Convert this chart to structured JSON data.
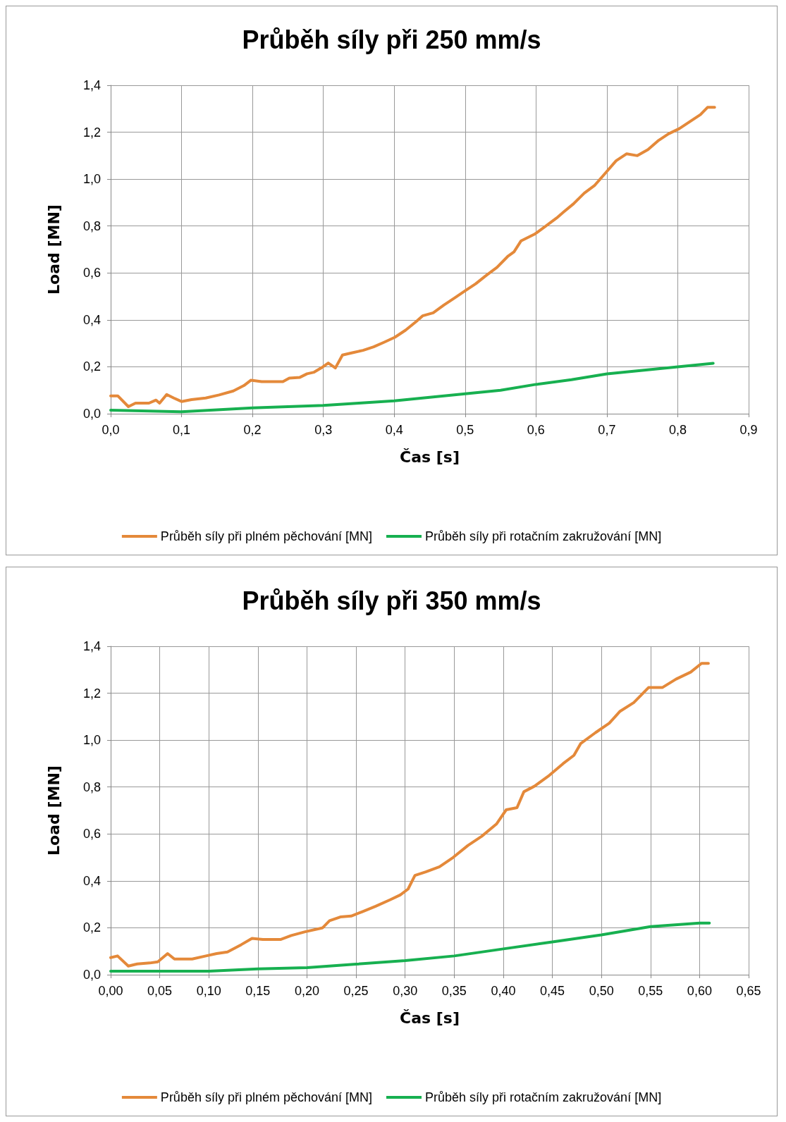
{
  "chart_data": [
    {
      "type": "line",
      "title": "Průběh síly při 250 mm/s",
      "xlabel": "Čas [s]",
      "ylabel": "Load [MN]",
      "grid": true,
      "legend": "bottom",
      "marker": "none",
      "line_style": "solid",
      "xlim": [
        0,
        0.9
      ],
      "xticks": [
        {
          "value": 0,
          "label": "0,0"
        },
        {
          "value": 0.1,
          "label": "0,1"
        },
        {
          "value": 0.2,
          "label": "0,2"
        },
        {
          "value": 0.3,
          "label": "0,3"
        },
        {
          "value": 0.4,
          "label": "0,4"
        },
        {
          "value": 0.5,
          "label": "0,5"
        },
        {
          "value": 0.6,
          "label": "0,6"
        },
        {
          "value": 0.7,
          "label": "0,7"
        },
        {
          "value": 0.8,
          "label": "0,8"
        },
        {
          "value": 0.9,
          "label": "0,9"
        }
      ],
      "ylim": [
        0,
        1.4
      ],
      "yticks": [
        {
          "value": 0,
          "label": "0,0"
        },
        {
          "value": 0.2,
          "label": "0,2"
        },
        {
          "value": 0.4,
          "label": "0,4"
        },
        {
          "value": 0.6,
          "label": "0,6"
        },
        {
          "value": 0.8,
          "label": "0,8"
        },
        {
          "value": 1.0,
          "label": "1,0"
        },
        {
          "value": 1.2,
          "label": "1,2"
        },
        {
          "value": 1.4,
          "label": "1,4"
        }
      ],
      "series": [
        {
          "name": "Průběh síly při plném pěchování [MN]",
          "color": "#e4893a",
          "x": [
            0,
            0.01,
            0.025,
            0.035,
            0.054,
            0.064,
            0.069,
            0.079,
            0.089,
            0.1,
            0.114,
            0.134,
            0.153,
            0.173,
            0.188,
            0.198,
            0.213,
            0.243,
            0.252,
            0.267,
            0.277,
            0.287,
            0.297,
            0.307,
            0.317,
            0.327,
            0.341,
            0.356,
            0.371,
            0.386,
            0.401,
            0.416,
            0.431,
            0.44,
            0.455,
            0.47,
            0.485,
            0.5,
            0.515,
            0.53,
            0.545,
            0.56,
            0.569,
            0.579,
            0.599,
            0.614,
            0.629,
            0.639,
            0.653,
            0.668,
            0.683,
            0.698,
            0.713,
            0.728,
            0.743,
            0.758,
            0.772,
            0.787,
            0.802,
            0.817,
            0.832,
            0.842,
            0.852
          ],
          "values": [
            0.076,
            0.076,
            0.03,
            0.045,
            0.045,
            0.058,
            0.045,
            0.082,
            0.067,
            0.052,
            0.06,
            0.067,
            0.08,
            0.097,
            0.12,
            0.143,
            0.137,
            0.137,
            0.152,
            0.155,
            0.17,
            0.177,
            0.195,
            0.216,
            0.195,
            0.25,
            0.26,
            0.27,
            0.285,
            0.305,
            0.326,
            0.356,
            0.393,
            0.417,
            0.43,
            0.463,
            0.493,
            0.524,
            0.554,
            0.59,
            0.624,
            0.67,
            0.69,
            0.737,
            0.767,
            0.8,
            0.834,
            0.86,
            0.895,
            0.94,
            0.974,
            1.026,
            1.078,
            1.108,
            1.1,
            1.126,
            1.163,
            1.193,
            1.215,
            1.245,
            1.275,
            1.306,
            1.306
          ]
        },
        {
          "name": "Průběh síly při rotačním zakružování [MN]",
          "color": "#17b050",
          "x": [
            0,
            0.1,
            0.2,
            0.3,
            0.35,
            0.4,
            0.45,
            0.5,
            0.55,
            0.6,
            0.65,
            0.7,
            0.75,
            0.8,
            0.85
          ],
          "values": [
            0.015,
            0.008,
            0.025,
            0.035,
            0.045,
            0.055,
            0.07,
            0.085,
            0.1,
            0.125,
            0.145,
            0.17,
            0.185,
            0.2,
            0.215
          ]
        }
      ]
    },
    {
      "type": "line",
      "title": "Průběh síly při 350 mm/s",
      "xlabel": "Čas [s]",
      "ylabel": "Load [MN]",
      "grid": true,
      "legend": "bottom",
      "marker": "none",
      "line_style": "solid",
      "xlim": [
        0,
        0.65
      ],
      "xticks": [
        {
          "value": 0,
          "label": "0,00"
        },
        {
          "value": 0.05,
          "label": "0,05"
        },
        {
          "value": 0.1,
          "label": "0,10"
        },
        {
          "value": 0.15,
          "label": "0,15"
        },
        {
          "value": 0.2,
          "label": "0,20"
        },
        {
          "value": 0.25,
          "label": "0,25"
        },
        {
          "value": 0.3,
          "label": "0,30"
        },
        {
          "value": 0.35,
          "label": "0,35"
        },
        {
          "value": 0.4,
          "label": "0,40"
        },
        {
          "value": 0.45,
          "label": "0,45"
        },
        {
          "value": 0.5,
          "label": "0,50"
        },
        {
          "value": 0.55,
          "label": "0,55"
        },
        {
          "value": 0.6,
          "label": "0,60"
        },
        {
          "value": 0.65,
          "label": "0,65"
        }
      ],
      "ylim": [
        0,
        1.4
      ],
      "yticks": [
        {
          "value": 0,
          "label": "0,0"
        },
        {
          "value": 0.2,
          "label": "0,2"
        },
        {
          "value": 0.4,
          "label": "0,4"
        },
        {
          "value": 0.6,
          "label": "0,6"
        },
        {
          "value": 0.8,
          "label": "0,8"
        },
        {
          "value": 1.0,
          "label": "1,0"
        },
        {
          "value": 1.2,
          "label": "1,2"
        },
        {
          "value": 1.4,
          "label": "1,4"
        }
      ],
      "series": [
        {
          "name": "Průběh síly při plném pěchování [MN]",
          "color": "#e4893a",
          "x": [
            0,
            0.007,
            0.018,
            0.027,
            0.04,
            0.048,
            0.058,
            0.065,
            0.083,
            0.097,
            0.108,
            0.119,
            0.133,
            0.144,
            0.155,
            0.173,
            0.184,
            0.198,
            0.216,
            0.223,
            0.234,
            0.245,
            0.256,
            0.27,
            0.285,
            0.295,
            0.303,
            0.31,
            0.321,
            0.335,
            0.349,
            0.364,
            0.378,
            0.393,
            0.403,
            0.414,
            0.421,
            0.432,
            0.447,
            0.461,
            0.472,
            0.479,
            0.494,
            0.508,
            0.519,
            0.533,
            0.548,
            0.562,
            0.576,
            0.591,
            0.602,
            0.609
          ],
          "values": [
            0.073,
            0.08,
            0.037,
            0.046,
            0.05,
            0.055,
            0.09,
            0.067,
            0.067,
            0.08,
            0.09,
            0.097,
            0.128,
            0.155,
            0.15,
            0.15,
            0.167,
            0.183,
            0.2,
            0.23,
            0.246,
            0.25,
            0.268,
            0.292,
            0.32,
            0.34,
            0.365,
            0.423,
            0.438,
            0.46,
            0.5,
            0.551,
            0.59,
            0.642,
            0.703,
            0.712,
            0.78,
            0.804,
            0.85,
            0.9,
            0.935,
            0.986,
            1.032,
            1.072,
            1.123,
            1.16,
            1.224,
            1.224,
            1.26,
            1.29,
            1.327,
            1.327
          ]
        },
        {
          "name": "Průběh síly při rotačním zakružování [MN]",
          "color": "#17b050",
          "x": [
            0,
            0.05,
            0.1,
            0.15,
            0.2,
            0.25,
            0.3,
            0.35,
            0.4,
            0.45,
            0.5,
            0.55,
            0.6,
            0.61
          ],
          "values": [
            0.015,
            0.015,
            0.015,
            0.025,
            0.03,
            0.045,
            0.06,
            0.08,
            0.11,
            0.14,
            0.17,
            0.205,
            0.22,
            0.22
          ]
        }
      ]
    }
  ]
}
